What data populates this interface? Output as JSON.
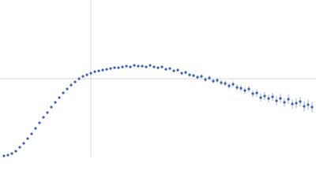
{
  "chart_data": {
    "type": "scatter",
    "color": "#3a62b5",
    "grid": true,
    "xlim": [
      0,
      400
    ],
    "ylim": [
      0,
      200
    ],
    "xticks": [
      115
    ],
    "yticks": [
      100
    ],
    "x": [
      5,
      10,
      15,
      20,
      25,
      30,
      35,
      40,
      45,
      50,
      55,
      60,
      65,
      70,
      75,
      80,
      85,
      90,
      95,
      100,
      105,
      110,
      115,
      120,
      125,
      130,
      135,
      140,
      145,
      150,
      155,
      160,
      165,
      170,
      175,
      180,
      185,
      190,
      195,
      200,
      205,
      210,
      215,
      220,
      225,
      230,
      235,
      240,
      245,
      250,
      255,
      260,
      265,
      270,
      275,
      280,
      285,
      290,
      295,
      300,
      305,
      310,
      315,
      320,
      325,
      330,
      335,
      340,
      345,
      350,
      355,
      360,
      365,
      370,
      375,
      380,
      385,
      390,
      395
    ],
    "values": [
      2,
      3,
      5,
      8,
      13,
      18,
      24,
      30,
      37,
      44,
      51,
      57,
      64,
      70,
      76,
      82,
      87,
      92,
      96,
      100,
      103,
      105,
      107,
      109,
      110,
      111,
      112,
      113,
      114,
      114,
      115,
      116,
      115,
      117,
      116,
      116,
      115,
      117,
      115,
      114,
      115,
      112,
      113,
      110,
      111,
      107,
      108,
      105,
      104,
      102,
      103,
      99,
      101,
      97,
      98,
      95,
      94,
      91,
      93,
      89,
      88,
      85,
      87,
      81,
      82,
      76,
      78,
      75,
      77,
      72,
      75,
      70,
      74,
      68,
      69,
      71,
      65,
      67,
      64
    ],
    "errors": [
      0.5,
      0.5,
      0.5,
      0.5,
      0.5,
      0.5,
      0.5,
      0.5,
      0.5,
      0.5,
      0.5,
      0.5,
      0.5,
      0.5,
      0.5,
      0.5,
      0.5,
      0.5,
      0.5,
      0.5,
      0.5,
      0.5,
      0.5,
      0.5,
      0.5,
      0.5,
      0.5,
      0.5,
      0.5,
      1,
      1,
      1,
      1,
      1,
      1,
      1,
      1,
      1,
      1,
      1.5,
      1.5,
      1.5,
      1.5,
      1.5,
      2,
      2,
      2,
      2,
      2,
      2.5,
      2.5,
      3,
      3,
      3,
      3,
      3,
      3.5,
      3.5,
      3.5,
      4,
      4,
      4,
      4,
      4.5,
      4.5,
      5,
      5,
      5,
      5,
      5.5,
      5.5,
      5.5,
      6,
      6,
      6,
      6,
      6.5,
      6.5,
      7
    ]
  }
}
